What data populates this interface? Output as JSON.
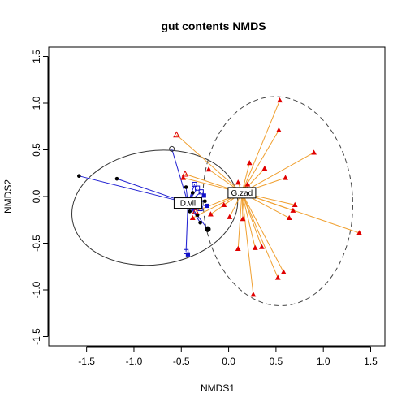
{
  "chart_data": {
    "type": "scatter",
    "title": "gut contents NMDS",
    "xlabel": "NMDS1",
    "ylabel": "NMDS2",
    "xlim": [
      -1.9,
      1.65
    ],
    "ylim": [
      -1.6,
      1.6
    ],
    "xticks": [
      -1.5,
      -1.0,
      -0.5,
      0.0,
      0.5,
      1.0,
      1.5
    ],
    "yticks": [
      -1.5,
      -1.0,
      -0.5,
      0.0,
      0.5,
      1.0,
      1.5
    ],
    "xtick_labels": [
      "-1.5",
      "-1.0",
      "-0.5",
      "0.0",
      "0.5",
      "1.0",
      "1.5"
    ],
    "ytick_labels": [
      "-1.5",
      "-1.0",
      "-0.5",
      "0.0",
      "0.5",
      "1.0",
      "1.5"
    ],
    "colors": {
      "dvil_spokes": "#1f1fd1",
      "dvil_points": "#000000",
      "dvil_squares": "#1010c8",
      "gzad_spokes": "#f0a030",
      "gzad_points": "#e00000",
      "ellipse_dvil": "#333333",
      "ellipse_gzad": "#444444"
    },
    "series": [
      {
        "name": "D.vil",
        "centroid": [
          -0.43,
          -0.07
        ],
        "points": [
          {
            "x": -1.58,
            "y": 0.22,
            "shape": "dot"
          },
          {
            "x": -1.18,
            "y": 0.19,
            "shape": "dot"
          },
          {
            "x": -0.6,
            "y": 0.51,
            "shape": "open-circle"
          },
          {
            "x": -0.45,
            "y": 0.1,
            "shape": "dot"
          },
          {
            "x": -0.38,
            "y": 0.04,
            "shape": "dot"
          },
          {
            "x": -0.3,
            "y": -0.02,
            "shape": "dot"
          },
          {
            "x": -0.41,
            "y": -0.16,
            "shape": "dot"
          },
          {
            "x": -0.33,
            "y": -0.2,
            "shape": "dot"
          },
          {
            "x": -0.3,
            "y": -0.28,
            "shape": "dot"
          },
          {
            "x": -0.22,
            "y": -0.35,
            "shape": "large-dot"
          },
          {
            "x": -0.25,
            "y": -0.05,
            "shape": "dot"
          },
          {
            "x": -0.36,
            "y": 0.13,
            "shape": "open-square"
          },
          {
            "x": -0.33,
            "y": 0.09,
            "shape": "open-square"
          },
          {
            "x": -0.29,
            "y": 0.05,
            "shape": "open-square"
          },
          {
            "x": -0.26,
            "y": 0.01,
            "shape": "square"
          },
          {
            "x": -0.23,
            "y": -0.1,
            "shape": "square"
          },
          {
            "x": -0.41,
            "y": -0.04,
            "shape": "square"
          },
          {
            "x": -0.37,
            "y": -0.12,
            "shape": "open-square"
          },
          {
            "x": -0.3,
            "y": -0.13,
            "shape": "open-square"
          },
          {
            "x": -0.45,
            "y": -0.59,
            "shape": "open-square"
          },
          {
            "x": -0.43,
            "y": -0.62,
            "shape": "square"
          }
        ]
      },
      {
        "name": "G.zad",
        "centroid": [
          0.14,
          0.04
        ],
        "points": [
          {
            "x": -0.55,
            "y": 0.66,
            "shape": "open-triangle"
          },
          {
            "x": 0.54,
            "y": 1.03,
            "shape": "triangle"
          },
          {
            "x": 0.53,
            "y": 0.71,
            "shape": "triangle"
          },
          {
            "x": 0.9,
            "y": 0.47,
            "shape": "triangle"
          },
          {
            "x": 0.22,
            "y": 0.36,
            "shape": "triangle"
          },
          {
            "x": 0.38,
            "y": 0.3,
            "shape": "triangle"
          },
          {
            "x": 0.6,
            "y": 0.2,
            "shape": "triangle"
          },
          {
            "x": -0.21,
            "y": 0.29,
            "shape": "triangle"
          },
          {
            "x": -0.46,
            "y": 0.24,
            "shape": "open-triangle"
          },
          {
            "x": -0.48,
            "y": 0.2,
            "shape": "triangle"
          },
          {
            "x": 0.1,
            "y": 0.15,
            "shape": "triangle"
          },
          {
            "x": 0.2,
            "y": 0.13,
            "shape": "triangle"
          },
          {
            "x": 0.24,
            "y": 0.05,
            "shape": "triangle"
          },
          {
            "x": 0.7,
            "y": -0.09,
            "shape": "triangle"
          },
          {
            "x": 0.68,
            "y": -0.15,
            "shape": "triangle"
          },
          {
            "x": 0.64,
            "y": -0.23,
            "shape": "triangle"
          },
          {
            "x": 1.38,
            "y": -0.39,
            "shape": "triangle"
          },
          {
            "x": -0.05,
            "y": -0.09,
            "shape": "triangle"
          },
          {
            "x": -0.19,
            "y": -0.19,
            "shape": "triangle"
          },
          {
            "x": 0.01,
            "y": -0.22,
            "shape": "triangle"
          },
          {
            "x": 0.15,
            "y": -0.24,
            "shape": "triangle"
          },
          {
            "x": -0.35,
            "y": -0.16,
            "shape": "open-triangle"
          },
          {
            "x": -0.38,
            "y": -0.23,
            "shape": "triangle"
          },
          {
            "x": 0.28,
            "y": -0.55,
            "shape": "triangle"
          },
          {
            "x": 0.35,
            "y": -0.54,
            "shape": "triangle"
          },
          {
            "x": 0.1,
            "y": -0.56,
            "shape": "triangle"
          },
          {
            "x": 0.58,
            "y": -0.81,
            "shape": "triangle"
          },
          {
            "x": 0.52,
            "y": -0.87,
            "shape": "triangle"
          },
          {
            "x": 0.26,
            "y": -1.05,
            "shape": "triangle"
          }
        ]
      }
    ],
    "ellipses": [
      {
        "group": "D.vil",
        "cx": -0.78,
        "cy": -0.12,
        "rx": 0.88,
        "ry": 0.61,
        "angle_deg": -8,
        "style": "solid"
      },
      {
        "group": "G.zad",
        "cx": 0.52,
        "cy": -0.05,
        "rx": 0.79,
        "ry": 1.12,
        "angle_deg": -3,
        "style": "dashed"
      }
    ],
    "labels": [
      {
        "text": "D.vil",
        "x": -0.43,
        "y": -0.07
      },
      {
        "text": "G.zad",
        "x": 0.14,
        "y": 0.04
      }
    ]
  }
}
